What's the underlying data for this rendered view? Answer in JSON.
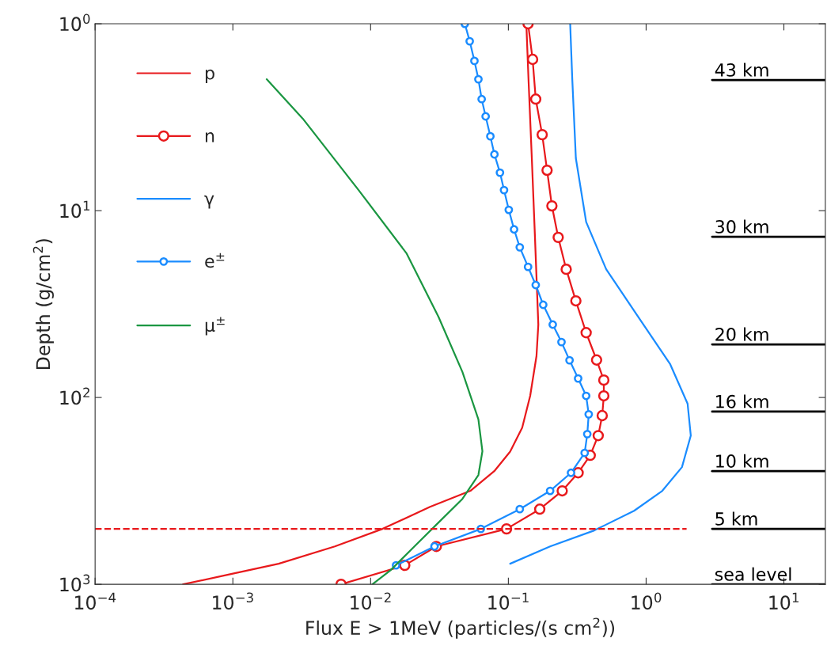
{
  "chart_data": {
    "type": "line",
    "xlabel": "Flux E > 1MeV (particles/(s cm$^{2}$))",
    "ylabel": "Depth (g/cm$^{2}$)",
    "log": "xy",
    "xlim": [
      0.0001,
      20
    ],
    "ylim": [
      1000,
      1
    ],
    "xticks": [
      {
        "value": 0.0001,
        "label": "10$^{−4}$"
      },
      {
        "value": 0.001,
        "label": "10$^{−3}$"
      },
      {
        "value": 0.01,
        "label": "10$^{−2}$"
      },
      {
        "value": 0.1,
        "label": "10$^{−1}$"
      },
      {
        "value": 1,
        "label": "10$^{0}$"
      },
      {
        "value": 10,
        "label": "10$^{1}$"
      }
    ],
    "yticks": [
      {
        "value": 1,
        "label": "10$^{0}$"
      },
      {
        "value": 10,
        "label": "10$^{1}$"
      },
      {
        "value": 100,
        "label": "10$^{2}$"
      },
      {
        "value": 1000,
        "label": "10$^{3}$"
      }
    ],
    "grid": false,
    "legend": "top left",
    "series": [
      {
        "name": "p",
        "color": "#e8191c",
        "marker": "none",
        "x": [
          0.135,
          0.14,
          0.148,
          0.156,
          0.165,
          0.16,
          0.144,
          0.126,
          0.103,
          0.079,
          0.053,
          0.027,
          0.0122,
          0.0055,
          0.00215,
          0.00097,
          0.000435
        ],
        "values": [
          1,
          1.98,
          5.25,
          13.9,
          40.7,
          60,
          98,
          145,
          195,
          248,
          316,
          385,
          505,
          627,
          776,
          881,
          1000
        ]
      },
      {
        "name": "n",
        "color": "#e8191c",
        "marker": "circle",
        "x": [
          0.139,
          0.15,
          0.158,
          0.176,
          0.191,
          0.207,
          0.23,
          0.263,
          0.309,
          0.367,
          0.437,
          0.493,
          0.493,
          0.48,
          0.449,
          0.393,
          0.321,
          0.246,
          0.169,
          0.097,
          0.03,
          0.0177,
          0.0061
        ],
        "values": [
          1,
          1.55,
          2.53,
          3.92,
          6.08,
          9.43,
          13.9,
          20.6,
          30.4,
          45,
          63,
          80.7,
          98,
          125,
          160,
          204,
          253,
          316,
          396,
          505,
          627,
          791,
          1000
        ]
      },
      {
        "name": "γ",
        "color": "#1a8cff",
        "marker": "none",
        "x": [
          0.281,
          0.291,
          0.309,
          0.367,
          0.513,
          0.875,
          1.49,
          2.0,
          2.11,
          1.82,
          1.31,
          0.818,
          0.42,
          0.201,
          0.103
        ],
        "values": [
          1,
          1.98,
          5.25,
          11.5,
          20.6,
          37,
          66,
          108,
          160,
          236,
          316,
          404,
          515,
          627,
          776
        ]
      },
      {
        "name": "e$^{±}$",
        "color": "#1a8cff",
        "marker": "circle",
        "x": [
          0.0483,
          0.0524,
          0.0567,
          0.0606,
          0.064,
          0.0684,
          0.074,
          0.0792,
          0.0869,
          0.093,
          0.1007,
          0.11,
          0.121,
          0.139,
          0.158,
          0.179,
          0.21,
          0.243,
          0.278,
          0.321,
          0.367,
          0.383,
          0.374,
          0.358,
          0.285,
          0.201,
          0.121,
          0.0631,
          0.0291,
          0.0153
        ],
        "values": [
          1,
          1.24,
          1.58,
          1.98,
          2.53,
          3.13,
          4.0,
          5.0,
          6.26,
          7.76,
          9.9,
          12.6,
          15.7,
          20,
          25,
          31.9,
          40.7,
          50.5,
          63.2,
          79.1,
          98,
          123,
          157,
          198,
          253,
          316,
          396,
          505,
          627,
          791
        ]
      },
      {
        "name": "μ$^{±}$",
        "color": "#1a9641",
        "marker": "none",
        "x": [
          0.00176,
          0.00322,
          0.00818,
          0.0182,
          0.0311,
          0.0464,
          0.0606,
          0.0648,
          0.0606,
          0.0464,
          0.0311,
          0.0208,
          0.014,
          0.0103
        ],
        "values": [
          1.98,
          3.22,
          7.76,
          16.9,
          37,
          73,
          131,
          194,
          260,
          349,
          467,
          627,
          839,
          1000
        ]
      }
    ],
    "ref_lines": [
      {
        "axis": "y",
        "value": 505,
        "color": "#e8191c",
        "line_style": "dashed"
      },
      {
        "axis": "y",
        "value": 2.0,
        "label": "43 km",
        "color": "#000000",
        "line_style": "solid"
      },
      {
        "axis": "y",
        "value": 13.8,
        "label": "30 km",
        "color": "#000000",
        "line_style": "solid"
      },
      {
        "axis": "y",
        "value": 52,
        "label": "20 km",
        "color": "#000000",
        "line_style": "solid"
      },
      {
        "axis": "y",
        "value": 119,
        "label": "16 km",
        "color": "#000000",
        "line_style": "solid"
      },
      {
        "axis": "y",
        "value": 248,
        "label": "10 km",
        "color": "#000000",
        "line_style": "solid"
      },
      {
        "axis": "y",
        "value": 505,
        "label": "5 km",
        "color": "#000000",
        "line_style": "solid"
      },
      {
        "axis": "y",
        "value": 1000,
        "label": "sea level",
        "color": "#000000",
        "line_style": "solid"
      }
    ]
  }
}
